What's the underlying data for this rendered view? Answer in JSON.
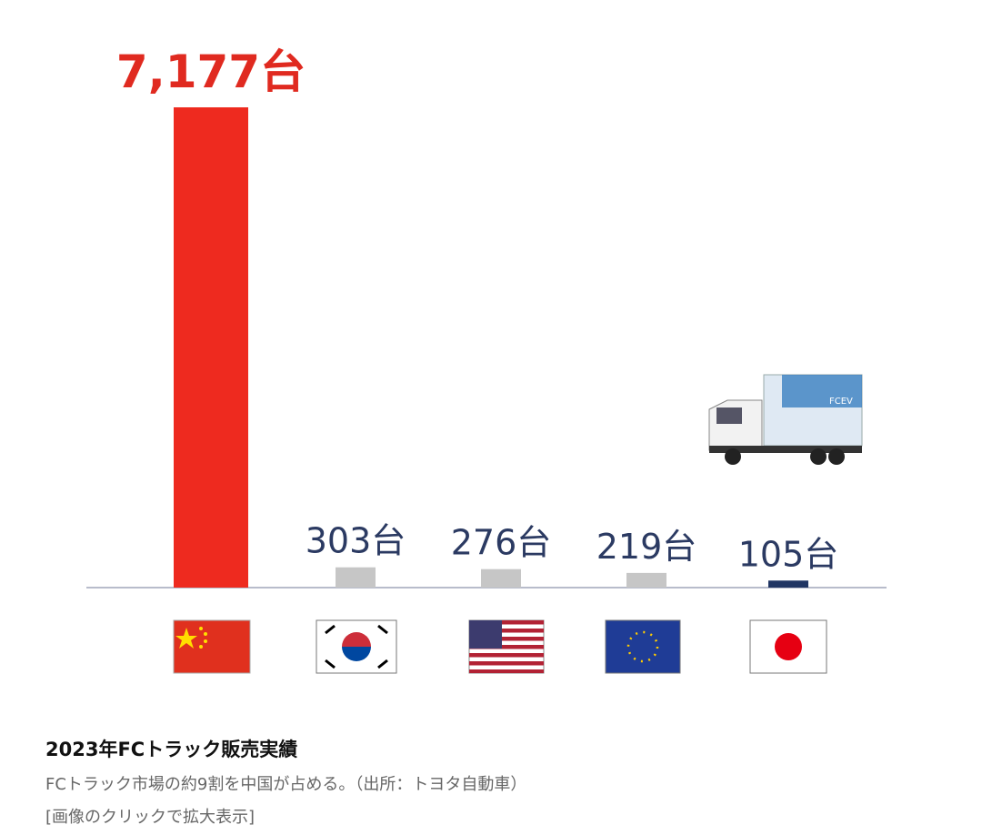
{
  "chart_data": {
    "type": "bar",
    "categories": [
      null,
      null,
      null,
      null,
      null
    ],
    "values": [
      7177,
      303,
      276,
      219,
      105
    ],
    "value_labels": [
      "7,177台",
      "303台",
      "276台",
      "219台",
      "105台"
    ],
    "colors": [
      "#ee2a1f",
      "#c6c6c6",
      "#c6c6c6",
      "#c6c6c6",
      "#203563"
    ]
  },
  "caption": {
    "title": "2023年FCトラック販売実績",
    "text": "FCトラック市場の約9割を中国が占める。（出所：トヨタ自動車）",
    "link": "[画像のクリックで拡大表示]"
  }
}
